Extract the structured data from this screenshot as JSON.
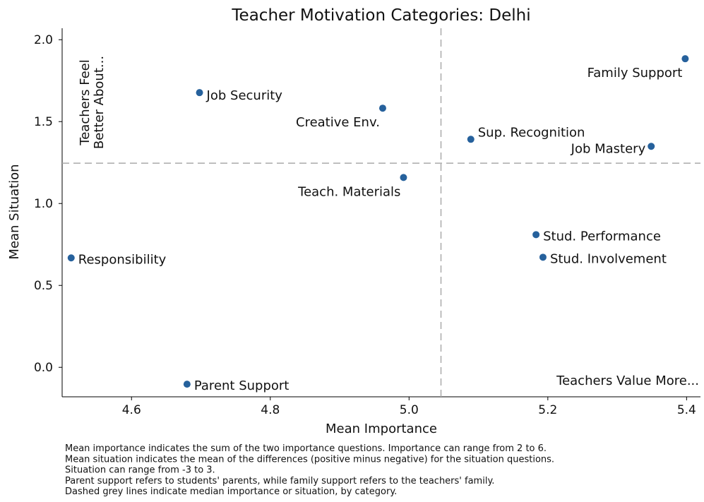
{
  "chart_data": {
    "type": "scatter",
    "title": "Teacher Motivation Categories: Delhi",
    "xlabel": "Mean Importance",
    "ylabel": "Mean Situation",
    "series": [
      {
        "color": "#26619c",
        "labels": [
          "Family Support",
          "Job Security",
          "Creative Env.",
          "Sup. Recognition",
          "Job Mastery",
          "Teach. Materials",
          "Stud. Performance",
          "Stud. Involvement",
          "Responsibility",
          "Parent Support"
        ],
        "x": [
          5.398,
          4.698,
          4.962,
          5.089,
          5.349,
          4.992,
          5.183,
          5.193,
          4.513,
          4.68
        ],
        "y": [
          1.884,
          1.677,
          1.582,
          1.392,
          1.349,
          1.159,
          0.81,
          0.672,
          0.668,
          -0.103
        ]
      }
    ],
    "reference_lines": {
      "x": 5.046,
      "y": 1.246,
      "color": "#aaaaaa"
    },
    "xlim": [
      4.5,
      5.42
    ],
    "ylim": [
      -0.18,
      2.07
    ],
    "xticks": [
      4.6,
      4.8,
      {
        "value": 5,
        "label": "5.0"
      },
      5.2,
      5.4
    ],
    "yticks": [
      {
        "value": 0,
        "label": "0.0"
      },
      0.5,
      {
        "value": 1,
        "label": "1.0"
      },
      1.5,
      {
        "value": 2,
        "label": "2.0"
      }
    ],
    "annotations": [
      {
        "text": [
          "Teachers Feel",
          "Better About..."
        ]
      },
      {
        "text": "Teachers Value More..."
      }
    ],
    "footnotes": [
      "Mean importance indicates the sum of the two importance questions. Importance can range from 2 to 6.",
      "Mean situation indicates the mean of the differences (positive minus negative) for the situation questions.",
      "Situation can range from -3 to 3.",
      "Parent support refers to students' parents, while family support refers to the teachers' family.",
      "Dashed grey lines indicate median importance or situation, by category."
    ]
  }
}
